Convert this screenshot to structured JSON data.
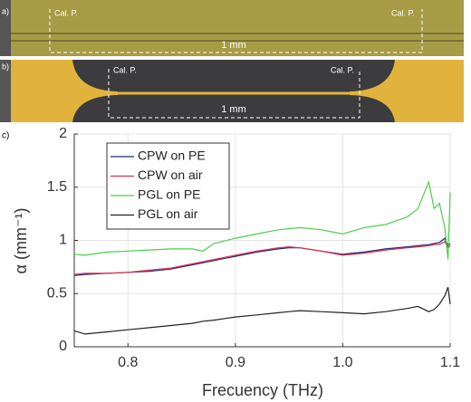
{
  "panels": [
    {
      "label": "a)",
      "markers": [
        "Cal. P.",
        "Cal. P."
      ],
      "scale": "1 mm"
    },
    {
      "label": "b)",
      "markers": [
        "Cal. P.",
        "Cal. P."
      ],
      "scale": "1 mm"
    }
  ],
  "chart_data": {
    "type": "line",
    "panel_label": "c)",
    "xlabel": "Frecuency (THz)",
    "ylabel": "α (mm⁻¹)",
    "x": [
      0.75,
      0.76,
      0.78,
      0.8,
      0.82,
      0.84,
      0.86,
      0.87,
      0.88,
      0.9,
      0.92,
      0.94,
      0.95,
      0.96,
      0.98,
      1.0,
      1.02,
      1.04,
      1.06,
      1.07,
      1.08,
      1.085,
      1.09,
      1.095,
      1.098,
      1.1
    ],
    "series": [
      {
        "name": "CPW on PE",
        "color": "#1f2a80",
        "values": [
          0.67,
          0.68,
          0.69,
          0.7,
          0.71,
          0.73,
          0.77,
          0.79,
          0.81,
          0.85,
          0.89,
          0.92,
          0.93,
          0.93,
          0.9,
          0.87,
          0.89,
          0.92,
          0.94,
          0.95,
          0.96,
          0.97,
          0.98,
          1.02,
          0.95,
          0.97
        ]
      },
      {
        "name": "CPW on air",
        "color": "#d9304a",
        "values": [
          0.68,
          0.69,
          0.69,
          0.7,
          0.72,
          0.74,
          0.78,
          0.8,
          0.82,
          0.86,
          0.9,
          0.93,
          0.94,
          0.93,
          0.9,
          0.86,
          0.88,
          0.91,
          0.93,
          0.94,
          0.95,
          0.96,
          0.96,
          0.99,
          0.93,
          0.95
        ]
      },
      {
        "name": "PGL on PE",
        "color": "#4ccd4c",
        "values": [
          0.87,
          0.86,
          0.89,
          0.9,
          0.91,
          0.92,
          0.92,
          0.9,
          0.97,
          1.02,
          1.06,
          1.1,
          1.11,
          1.12,
          1.1,
          1.06,
          1.12,
          1.15,
          1.22,
          1.3,
          1.55,
          1.3,
          1.35,
          1.12,
          0.82,
          1.45
        ]
      },
      {
        "name": "PGL on air",
        "color": "#222222",
        "values": [
          0.15,
          0.12,
          0.14,
          0.16,
          0.18,
          0.2,
          0.22,
          0.24,
          0.25,
          0.28,
          0.3,
          0.32,
          0.33,
          0.34,
          0.33,
          0.32,
          0.31,
          0.33,
          0.36,
          0.38,
          0.33,
          0.35,
          0.4,
          0.48,
          0.56,
          0.4
        ]
      }
    ],
    "xlim": [
      0.75,
      1.1
    ],
    "xticks": [
      0.8,
      0.9,
      {
        "value": 1,
        "label": "1.0"
      },
      1.1
    ],
    "ylim": [
      0,
      2
    ],
    "yticks": [
      0,
      0.5,
      1,
      1.5,
      2
    ],
    "grid": true,
    "legend": "upper left"
  }
}
